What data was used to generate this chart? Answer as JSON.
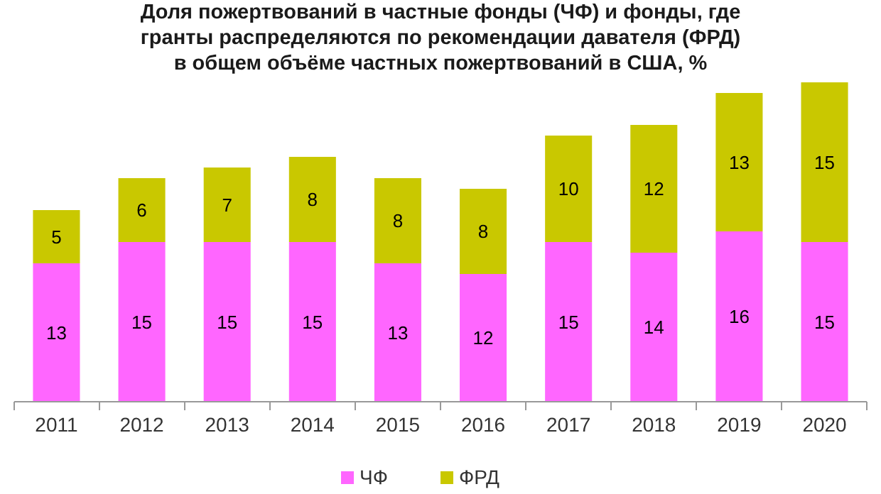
{
  "chart_data": {
    "type": "bar",
    "title": "Доля пожертвований в частные фонды (ЧФ) и фонды, где\nгранты распределяются по рекомендации давателя (ФРД)\nв общем объёме частных пожертвований в США, %",
    "categories": [
      "2011",
      "2012",
      "2013",
      "2014",
      "2015",
      "2016",
      "2017",
      "2018",
      "2019",
      "2020"
    ],
    "stacked": true,
    "data_labels": true,
    "legend": "bottom",
    "grid": false,
    "series": [
      {
        "name": "ЧФ",
        "color": "#ff66ff",
        "values": [
          13,
          15,
          15,
          15,
          13,
          12,
          15,
          14,
          16,
          15
        ]
      },
      {
        "name": "ФРД",
        "color": "#c9c800",
        "values": [
          5,
          6,
          7,
          8,
          8,
          8,
          10,
          12,
          13,
          15
        ]
      }
    ]
  }
}
